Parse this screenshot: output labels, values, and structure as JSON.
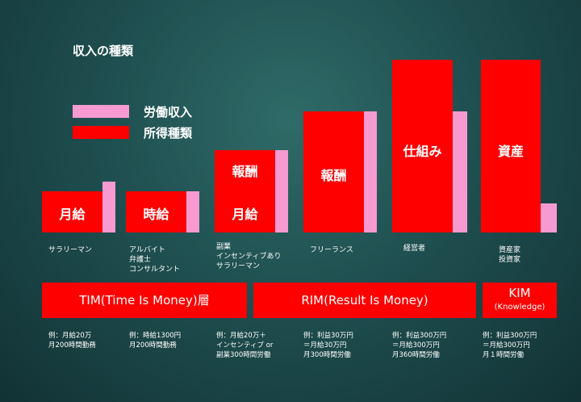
{
  "title": "収入の種類",
  "legend": {
    "labor": "労働収入",
    "income": "所得種類"
  },
  "colors": {
    "labor": "#f79ad2",
    "income": "#ff0000"
  },
  "bars": [
    {
      "income_label": "月給"
    },
    {
      "income_label": "時給"
    },
    {
      "income_label_top": "報酬",
      "income_label_bottom": "月給"
    },
    {
      "income_label": "報酬"
    },
    {
      "income_label": "仕組み"
    },
    {
      "income_label": "資産"
    }
  ],
  "categories": [
    "サラリーマン",
    "アルバイト\n弁護士\nコンサルタント",
    "副業\nインセンティブあり\nサラリーマン",
    "フリーランス",
    "経営者",
    "資産家\n投資家"
  ],
  "bands": {
    "tim": "TIM(Time Is Money)層",
    "rim": "RIM(Result Is Money)",
    "kim_title": "KIM",
    "kim_sub": "(Knowledge)"
  },
  "examples": [
    "例：月給20万\n月200時間勤務",
    "例：時給1300円\n月200時間勤務",
    "例：月給20万＋\nインセンティブ or\n副業300時間労働",
    "例：利益30万円\n＝月給30万円\n月300時間労働",
    "例：利益300万円\n＝月給300万円\n月360時間労働",
    "例：利益300万円\n＝月給300万円\n月１時間労働"
  ]
}
